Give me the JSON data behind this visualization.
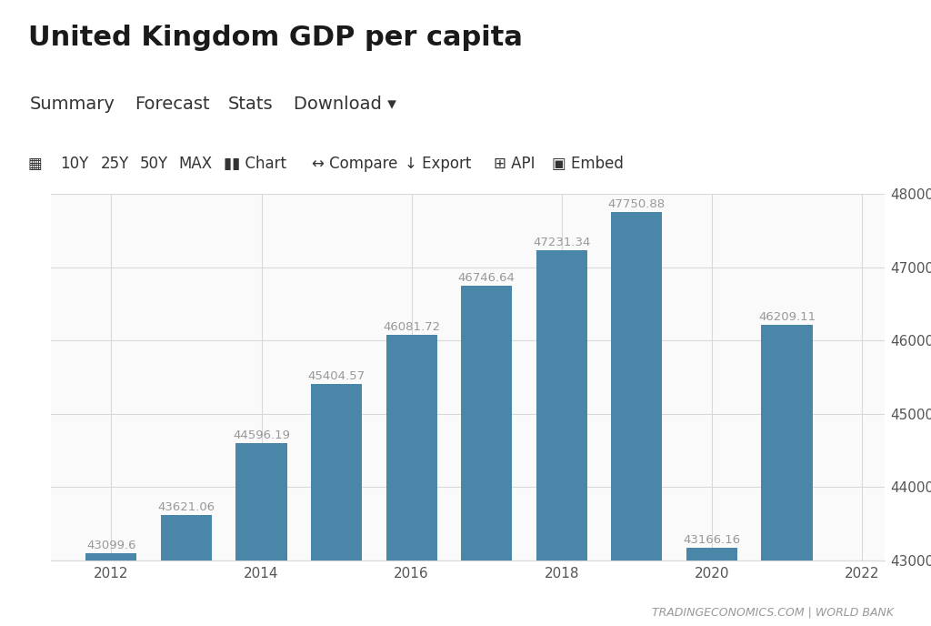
{
  "title": "United Kingdom GDP per capita",
  "tab_labels": [
    "Summary",
    "Forecast",
    "Stats",
    "Download ▾"
  ],
  "toolbar_labels": [
    "10Y",
    "25Y",
    "50Y",
    "MAX",
    "Chart",
    "Compare",
    "Export",
    "API",
    "Embed"
  ],
  "years": [
    2012,
    2013,
    2014,
    2015,
    2016,
    2017,
    2018,
    2019,
    2020,
    2021
  ],
  "values": [
    43099.6,
    43621.06,
    44596.19,
    45404.57,
    46081.72,
    46746.64,
    47231.34,
    47750.88,
    43166.16,
    46209.11
  ],
  "bar_color": "#4a86a8",
  "ylim_min": 43000,
  "ylim_max": 48000,
  "yticks": [
    43000,
    44000,
    45000,
    46000,
    47000,
    48000
  ],
  "xtick_labels": [
    "2012",
    "2014",
    "2016",
    "2018",
    "2020",
    "2022"
  ],
  "xtick_positions": [
    2012,
    2014,
    2016,
    2018,
    2020,
    2022
  ],
  "footer_text": "TRADINGECONOMICS.COM | WORLD BANK",
  "bg_color": "#ffffff",
  "header_bg": "#f0f0f0",
  "toolbar_bg": "#f5f5f5",
  "plot_bg": "#fafafa",
  "grid_color": "#d8d8d8",
  "label_color": "#999999",
  "tab_color": "#333333",
  "underline_color": "#1a1a3e",
  "title_fontsize": 22,
  "tab_fontsize": 14,
  "toolbar_fontsize": 12,
  "bar_label_fontsize": 9.5,
  "axis_fontsize": 11,
  "footer_fontsize": 9,
  "bar_width": 0.68,
  "xlim_min": 2011.2,
  "xlim_max": 2022.3
}
